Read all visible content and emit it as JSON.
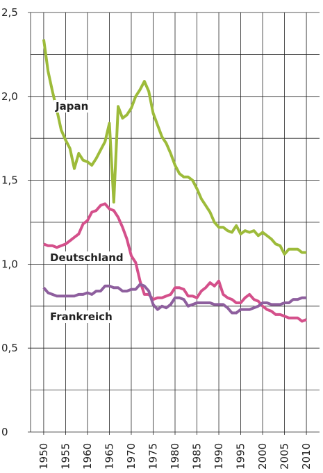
{
  "chart_data": {
    "type": "line",
    "x": [
      1950,
      1951,
      1952,
      1953,
      1954,
      1955,
      1956,
      1957,
      1958,
      1959,
      1960,
      1961,
      1962,
      1963,
      1964,
      1965,
      1966,
      1967,
      1968,
      1969,
      1970,
      1971,
      1972,
      1973,
      1974,
      1975,
      1976,
      1977,
      1978,
      1979,
      1980,
      1981,
      1982,
      1983,
      1984,
      1985,
      1986,
      1987,
      1988,
      1989,
      1990,
      1991,
      1992,
      1993,
      1994,
      1995,
      1996,
      1997,
      1998,
      1999,
      2000,
      2001,
      2002,
      2003,
      2004,
      2005,
      2006,
      2007,
      2008,
      2009,
      2010
    ],
    "series": [
      {
        "name": "Japan",
        "color": "#9dbb3a",
        "values": [
          2.34,
          2.15,
          2.03,
          1.92,
          1.8,
          1.74,
          1.69,
          1.57,
          1.66,
          1.62,
          1.61,
          1.59,
          1.63,
          1.68,
          1.73,
          1.84,
          1.37,
          1.94,
          1.87,
          1.89,
          1.93,
          2.0,
          2.04,
          2.09,
          2.03,
          1.9,
          1.83,
          1.76,
          1.72,
          1.66,
          1.59,
          1.54,
          1.52,
          1.52,
          1.5,
          1.45,
          1.39,
          1.35,
          1.31,
          1.25,
          1.22,
          1.22,
          1.2,
          1.19,
          1.23,
          1.18,
          1.2,
          1.19,
          1.2,
          1.17,
          1.19,
          1.17,
          1.15,
          1.12,
          1.11,
          1.06,
          1.09,
          1.09,
          1.09,
          1.07,
          1.07
        ]
      },
      {
        "name": "Deutschland",
        "color": "#d4508b",
        "values": [
          1.12,
          1.11,
          1.11,
          1.1,
          1.11,
          1.12,
          1.14,
          1.16,
          1.18,
          1.24,
          1.26,
          1.31,
          1.32,
          1.35,
          1.36,
          1.33,
          1.32,
          1.28,
          1.22,
          1.15,
          1.05,
          1.01,
          0.9,
          0.82,
          0.82,
          0.79,
          0.8,
          0.8,
          0.81,
          0.82,
          0.86,
          0.86,
          0.85,
          0.81,
          0.81,
          0.8,
          0.84,
          0.86,
          0.89,
          0.87,
          0.9,
          0.82,
          0.8,
          0.79,
          0.77,
          0.77,
          0.8,
          0.82,
          0.79,
          0.78,
          0.75,
          0.73,
          0.72,
          0.7,
          0.7,
          0.69,
          0.68,
          0.68,
          0.68,
          0.66,
          0.67
        ]
      },
      {
        "name": "Frankreich",
        "color": "#8e5f9e",
        "values": [
          0.86,
          0.83,
          0.82,
          0.81,
          0.81,
          0.81,
          0.81,
          0.81,
          0.82,
          0.82,
          0.83,
          0.82,
          0.84,
          0.84,
          0.87,
          0.87,
          0.86,
          0.86,
          0.84,
          0.84,
          0.85,
          0.85,
          0.88,
          0.87,
          0.84,
          0.76,
          0.73,
          0.75,
          0.74,
          0.76,
          0.8,
          0.8,
          0.79,
          0.75,
          0.76,
          0.77,
          0.77,
          0.77,
          0.77,
          0.76,
          0.76,
          0.76,
          0.74,
          0.71,
          0.71,
          0.73,
          0.73,
          0.73,
          0.74,
          0.75,
          0.77,
          0.77,
          0.76,
          0.76,
          0.76,
          0.77,
          0.77,
          0.79,
          0.79,
          0.8,
          0.8
        ]
      }
    ],
    "xlim": [
      1947,
      2013
    ],
    "xticks": [
      1950,
      1955,
      1960,
      1965,
      1970,
      1975,
      1980,
      1985,
      1990,
      1995,
      2000,
      2005,
      2010
    ],
    "ylim": [
      0,
      2.5
    ],
    "yticks": [
      0,
      {
        "value": 0.5,
        "label": "0,5"
      },
      {
        "value": 1,
        "label": "1,0"
      },
      {
        "value": 1.5,
        "label": "1,5"
      },
      {
        "value": 2,
        "label": "2,0"
      },
      {
        "value": 2.5,
        "label": "2,5"
      }
    ],
    "yminor": [
      0.25,
      0.75,
      1.25,
      1.75,
      2.25
    ],
    "grid": true
  }
}
